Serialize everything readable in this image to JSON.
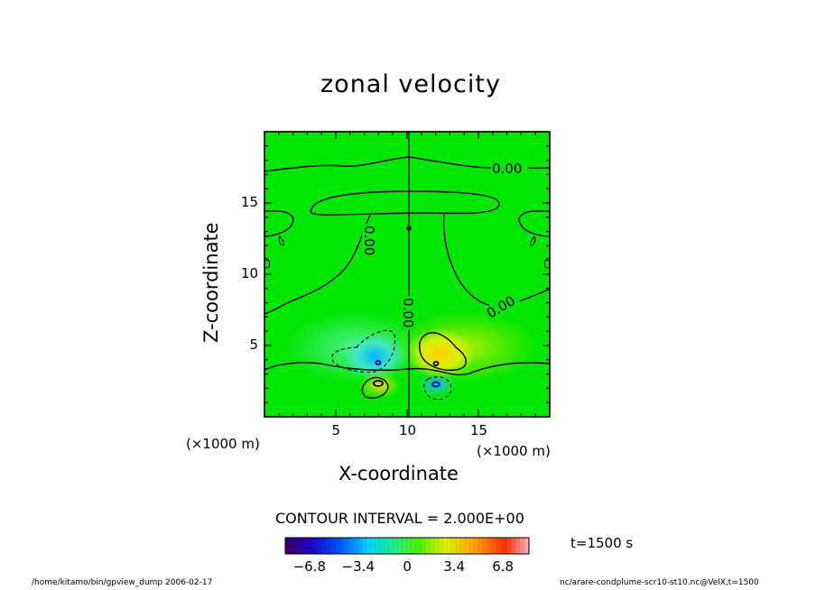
{
  "chart_data": {
    "type": "heatmap",
    "title": "zonal velocity",
    "xlabel": "X-coordinate",
    "ylabel": "Z-coordinate",
    "xlim": [
      0,
      20
    ],
    "ylim": [
      0,
      20
    ],
    "x_ticks": [
      5,
      10,
      15
    ],
    "y_ticks": [
      5,
      10,
      15
    ],
    "x_unit": "(×1000 m)",
    "y_unit": "(×1000 m)",
    "contour_interval": "CONTOUR INTERVAL = 2.000E+00",
    "contour_labels": [
      "0.00",
      "0.00",
      "0.00",
      "0.00"
    ],
    "colorbar": {
      "ticks": [
        -6.8,
        -3.4,
        0,
        3.4,
        6.8
      ],
      "tick_labels": [
        "−6.8",
        "−3.4",
        "0",
        "3.4",
        "6.8"
      ],
      "range": [
        -8.5,
        8.5
      ]
    },
    "features": [
      {
        "x": 8.0,
        "z": 4.0,
        "value": -4.0
      },
      {
        "x": 8.0,
        "z": 2.3,
        "value": 5.0
      },
      {
        "x": 12.0,
        "z": 4.0,
        "value": 4.0
      },
      {
        "x": 12.0,
        "z": 2.3,
        "value": -5.0
      }
    ]
  },
  "time_label": "t=1500 s",
  "footer_left": "/home/kitamo/bin/gpview_dump  2006-02-17",
  "footer_right": "nc/arare-condplume-scr10-st10.nc@VelX,t=1500"
}
